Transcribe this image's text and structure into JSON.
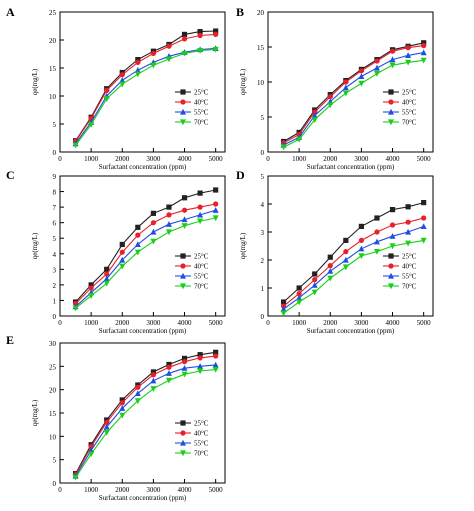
{
  "chart_data": [
    {
      "panel": "A",
      "type": "line",
      "xlabel": "Surfactant concentration (ppm)",
      "ylabel": "qe(mg/L)",
      "x": [
        500,
        1000,
        1500,
        2000,
        2500,
        3000,
        3500,
        4000,
        4500,
        5000
      ],
      "xticks": [
        0,
        1000,
        2000,
        3000,
        4000,
        5000
      ],
      "xlim": [
        0,
        5300
      ],
      "ylim": [
        0,
        25
      ],
      "yticks": [
        0,
        5,
        10,
        15,
        20,
        25
      ],
      "series": [
        {
          "name": "25°C",
          "values": [
            2.0,
            6.2,
            11.3,
            14.2,
            16.5,
            18.0,
            19.2,
            21.0,
            21.5,
            21.6
          ]
        },
        {
          "name": "40°C",
          "values": [
            1.9,
            6.0,
            11.0,
            13.8,
            16.0,
            17.6,
            18.9,
            20.2,
            20.8,
            21.0
          ]
        },
        {
          "name": "55°C",
          "values": [
            1.5,
            5.3,
            10.0,
            12.8,
            14.6,
            16.0,
            17.1,
            17.8,
            18.3,
            18.5
          ]
        },
        {
          "name": "70°C",
          "values": [
            1.2,
            4.9,
            9.5,
            12.1,
            13.9,
            15.5,
            16.6,
            17.6,
            18.1,
            18.3
          ]
        }
      ]
    },
    {
      "panel": "B",
      "type": "line",
      "xlabel": "Surfactant concentration (ppm)",
      "ylabel": "qe(mg/L)",
      "x": [
        500,
        1000,
        1500,
        2000,
        2500,
        3000,
        3500,
        4000,
        4500,
        5000
      ],
      "xticks": [
        0,
        1000,
        2000,
        3000,
        4000,
        5000
      ],
      "xlim": [
        0,
        5300
      ],
      "ylim": [
        0,
        20
      ],
      "yticks": [
        0,
        5,
        10,
        15,
        20
      ],
      "series": [
        {
          "name": "25°C",
          "values": [
            1.5,
            2.8,
            6.0,
            8.2,
            10.2,
            11.8,
            13.2,
            14.6,
            15.1,
            15.6
          ]
        },
        {
          "name": "40°C",
          "values": [
            1.3,
            2.5,
            5.7,
            7.9,
            10.0,
            11.6,
            13.0,
            14.4,
            14.9,
            15.2
          ]
        },
        {
          "name": "55°C",
          "values": [
            1.0,
            2.1,
            5.2,
            7.2,
            9.2,
            10.8,
            12.0,
            13.2,
            13.8,
            14.2
          ]
        },
        {
          "name": "70°C",
          "values": [
            0.7,
            1.8,
            4.6,
            6.7,
            8.4,
            9.8,
            11.2,
            12.4,
            12.8,
            13.1
          ]
        }
      ]
    },
    {
      "panel": "C",
      "type": "line",
      "xlabel": "Surfactant concentration (ppm)",
      "ylabel": "qe(mg/L)",
      "x": [
        500,
        1000,
        1500,
        2000,
        2500,
        3000,
        3500,
        4000,
        4500,
        5000
      ],
      "xticks": [
        0,
        1000,
        2000,
        3000,
        4000,
        5000
      ],
      "xlim": [
        0,
        5300
      ],
      "ylim": [
        0,
        9
      ],
      "yticks": [
        0,
        1,
        2,
        3,
        4,
        5,
        6,
        7,
        8,
        9
      ],
      "series": [
        {
          "name": "25°C",
          "values": [
            0.9,
            2.0,
            3.0,
            4.6,
            5.7,
            6.6,
            7.0,
            7.6,
            7.9,
            8.1
          ]
        },
        {
          "name": "40°C",
          "values": [
            0.8,
            1.8,
            2.7,
            4.1,
            5.2,
            6.0,
            6.5,
            6.8,
            7.0,
            7.2
          ]
        },
        {
          "name": "55°C",
          "values": [
            0.6,
            1.5,
            2.4,
            3.6,
            4.6,
            5.4,
            5.9,
            6.2,
            6.5,
            6.8
          ]
        },
        {
          "name": "70°C",
          "values": [
            0.5,
            1.3,
            2.1,
            3.2,
            4.1,
            4.8,
            5.4,
            5.8,
            6.1,
            6.3
          ]
        }
      ]
    },
    {
      "panel": "D",
      "type": "line",
      "xlabel": "Surfactant concentration (ppm)",
      "ylabel": "qe(mg/L)",
      "x": [
        500,
        1000,
        1500,
        2000,
        2500,
        3000,
        3500,
        4000,
        4500,
        5000
      ],
      "xticks": [
        0,
        1000,
        2000,
        3000,
        4000,
        5000
      ],
      "xlim": [
        0,
        5300
      ],
      "ylim": [
        0,
        5
      ],
      "yticks": [
        0,
        1,
        2,
        3,
        4,
        5
      ],
      "series": [
        {
          "name": "25°C",
          "values": [
            0.5,
            1.0,
            1.5,
            2.1,
            2.7,
            3.2,
            3.5,
            3.8,
            3.9,
            4.05
          ]
        },
        {
          "name": "40°C",
          "values": [
            0.35,
            0.8,
            1.3,
            1.8,
            2.3,
            2.7,
            3.0,
            3.25,
            3.35,
            3.5
          ]
        },
        {
          "name": "55°C",
          "values": [
            0.25,
            0.65,
            1.1,
            1.6,
            2.0,
            2.4,
            2.65,
            2.85,
            3.0,
            3.2
          ]
        },
        {
          "name": "70°C",
          "values": [
            0.1,
            0.5,
            0.85,
            1.35,
            1.75,
            2.15,
            2.3,
            2.5,
            2.6,
            2.7
          ]
        }
      ]
    },
    {
      "panel": "E",
      "type": "line",
      "xlabel": "Surfactant concentration (ppm)",
      "ylabel": "qe(mg/L)",
      "x": [
        500,
        1000,
        1500,
        2000,
        2500,
        3000,
        3500,
        4000,
        4500,
        5000
      ],
      "xticks": [
        0,
        1000,
        2000,
        3000,
        4000,
        5000
      ],
      "xlim": [
        0,
        5300
      ],
      "ylim": [
        0,
        30
      ],
      "yticks": [
        0,
        5,
        10,
        15,
        20,
        25,
        30
      ],
      "series": [
        {
          "name": "25°C",
          "values": [
            2.0,
            8.2,
            13.5,
            17.8,
            21.0,
            23.8,
            25.4,
            26.7,
            27.5,
            28.0
          ]
        },
        {
          "name": "40°C",
          "values": [
            1.8,
            7.8,
            13.0,
            17.2,
            20.5,
            23.2,
            24.8,
            26.0,
            26.8,
            27.2
          ]
        },
        {
          "name": "55°C",
          "values": [
            1.5,
            7.0,
            12.0,
            16.0,
            19.2,
            21.9,
            23.5,
            24.6,
            25.0,
            25.3
          ]
        },
        {
          "name": "70°C",
          "values": [
            1.2,
            6.2,
            10.8,
            14.5,
            17.6,
            20.2,
            22.0,
            23.3,
            24.0,
            24.3
          ]
        }
      ]
    }
  ],
  "colors": [
    "#222222",
    "#e8202a",
    "#1f4fe0",
    "#18d018"
  ],
  "markers": [
    "square",
    "circle",
    "triangle-up",
    "triangle-down"
  ]
}
